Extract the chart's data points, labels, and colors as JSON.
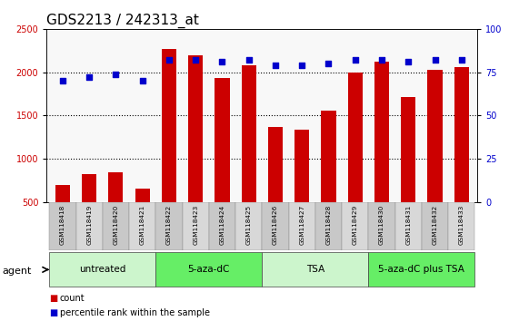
{
  "title": "GDS2213 / 242313_at",
  "samples": [
    "GSM118418",
    "GSM118419",
    "GSM118420",
    "GSM118421",
    "GSM118422",
    "GSM118423",
    "GSM118424",
    "GSM118425",
    "GSM118426",
    "GSM118427",
    "GSM118428",
    "GSM118429",
    "GSM118430",
    "GSM118431",
    "GSM118432",
    "GSM118433"
  ],
  "counts": [
    700,
    820,
    850,
    660,
    2270,
    2200,
    1930,
    2080,
    1370,
    1340,
    1560,
    2000,
    2120,
    1710,
    2030,
    2060
  ],
  "percentile_ranks": [
    70,
    72,
    74,
    70,
    82,
    82,
    81,
    82,
    79,
    79,
    80,
    82,
    82,
    81,
    82,
    82
  ],
  "bar_color": "#cc0000",
  "dot_color": "#0000cc",
  "groups": [
    {
      "label": "untreated",
      "start": 0,
      "end": 4,
      "color": "#ccf5cc"
    },
    {
      "label": "5-aza-dC",
      "start": 4,
      "end": 8,
      "color": "#66ee66"
    },
    {
      "label": "TSA",
      "start": 8,
      "end": 12,
      "color": "#ccf5cc"
    },
    {
      "label": "5-aza-dC plus TSA",
      "start": 12,
      "end": 16,
      "color": "#66ee66"
    }
  ],
  "ylim_left": [
    500,
    2500
  ],
  "ylim_right": [
    0,
    100
  ],
  "yticks_left": [
    500,
    1000,
    1500,
    2000,
    2500
  ],
  "yticks_right": [
    0,
    25,
    50,
    75,
    100
  ],
  "background_color": "#ffffff",
  "tick_label_color_left": "#cc0000",
  "tick_label_color_right": "#0000cc",
  "title_fontsize": 11,
  "legend_items": [
    "count",
    "percentile rank within the sample"
  ],
  "agent_label": "agent",
  "bar_width": 0.55,
  "dotted_grid_values": [
    1000,
    1500,
    2000
  ]
}
